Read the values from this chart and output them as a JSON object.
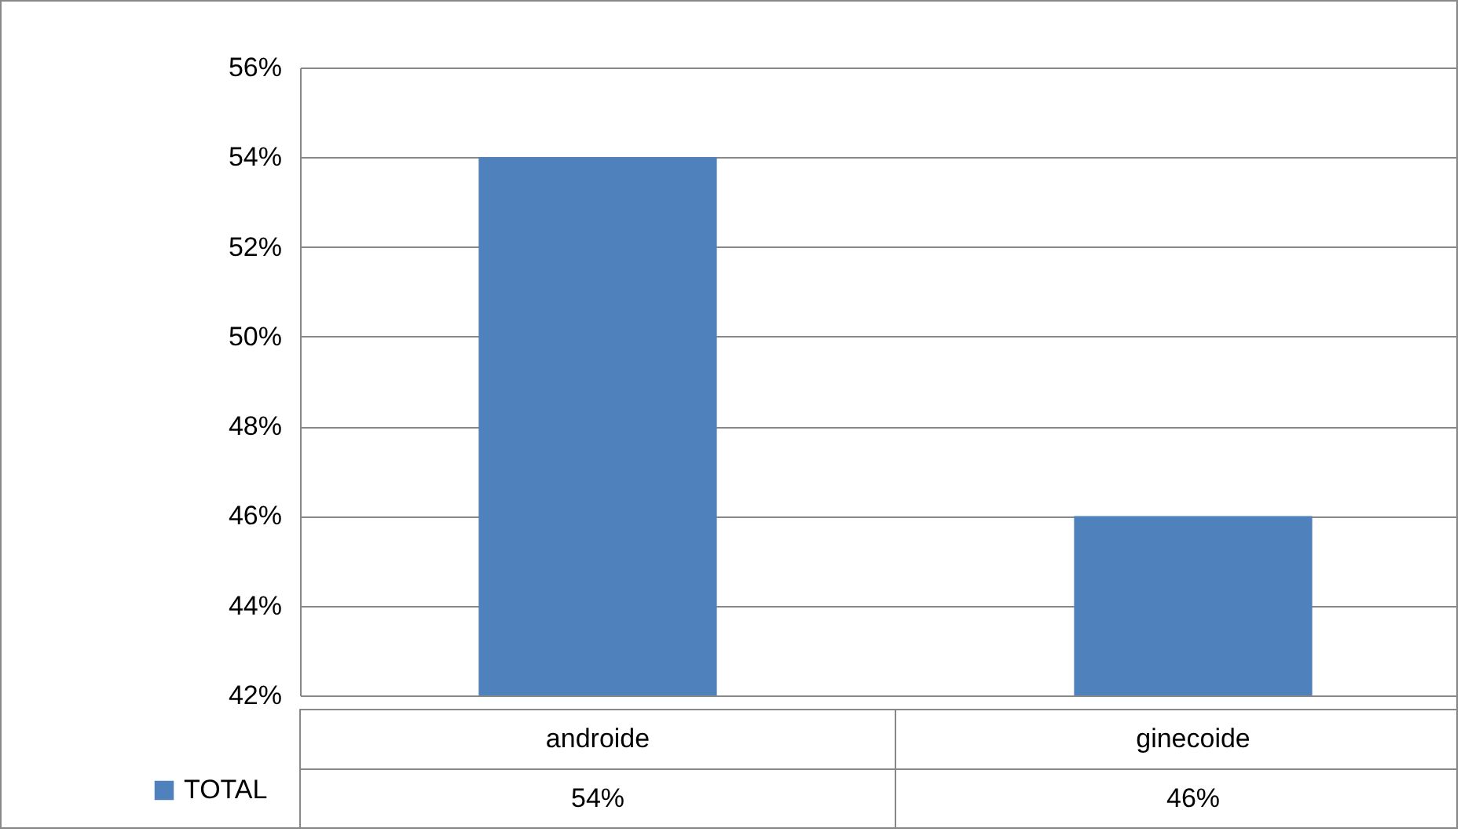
{
  "chart_data": {
    "type": "bar",
    "categories": [
      "androide",
      "ginecoide"
    ],
    "series": [
      {
        "name": "TOTAL",
        "color": "#4f81bd",
        "values": [
          54,
          46
        ],
        "value_labels": [
          "54%",
          "46%"
        ]
      }
    ],
    "ylim": [
      42,
      56
    ],
    "yticks": [
      {
        "value": 42,
        "label": "42%"
      },
      {
        "value": 44,
        "label": "44%"
      },
      {
        "value": 46,
        "label": "46%"
      },
      {
        "value": 48,
        "label": "48%"
      },
      {
        "value": 50,
        "label": "50%"
      },
      {
        "value": 52,
        "label": "52%"
      },
      {
        "value": 54,
        "label": "54%"
      },
      {
        "value": 56,
        "label": "56%"
      }
    ],
    "grid": "y",
    "legend": "bottom left"
  }
}
